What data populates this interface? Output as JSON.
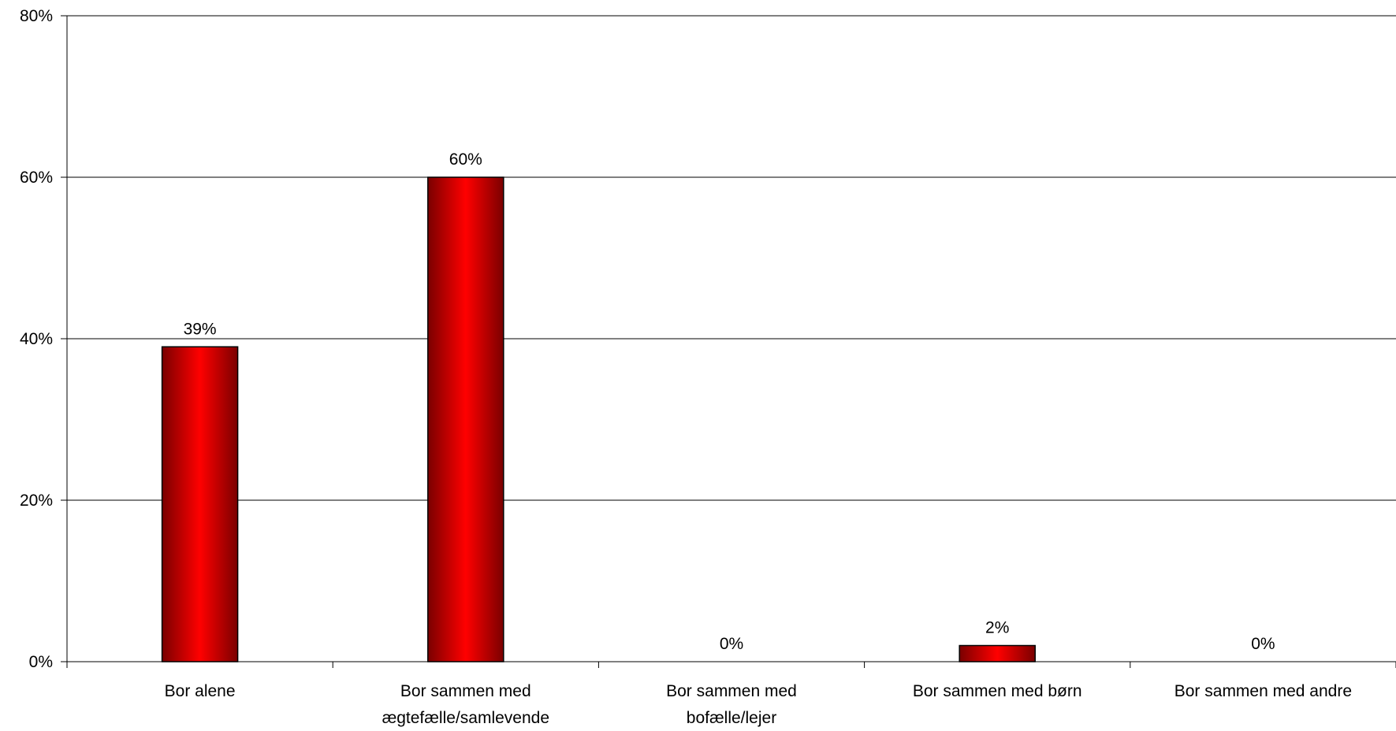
{
  "chart_data": {
    "type": "bar",
    "categories": [
      [
        "Bor alene"
      ],
      [
        "Bor sammen med",
        "ægtefælle/samlevende"
      ],
      [
        "Bor sammen med",
        "bofælle/lejer"
      ],
      [
        "Bor sammen med børn"
      ],
      [
        "Bor sammen med andre"
      ]
    ],
    "values": [
      39,
      60,
      0,
      2,
      0
    ],
    "data_labels": [
      "39%",
      "60%",
      "0%",
      "2%",
      "0%"
    ],
    "yticks": [
      0,
      20,
      40,
      60,
      80
    ],
    "ytick_labels": [
      "0%",
      "20%",
      "40%",
      "60%",
      "80%"
    ],
    "ylim": [
      0,
      80
    ],
    "grid": true,
    "bar_color": "#ff0000",
    "bar_color_dark": "#7a0000"
  }
}
